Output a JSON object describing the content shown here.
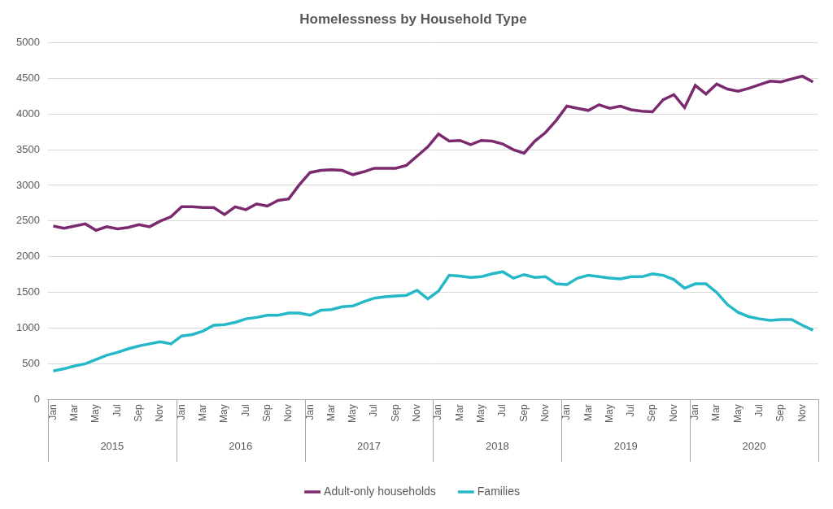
{
  "chart_data": {
    "type": "line",
    "title": "Homelessness by Household Type",
    "categories": [
      "Jan",
      null,
      "Mar",
      null,
      "May",
      null,
      "Jul",
      null,
      "Sep",
      null,
      "Nov",
      null,
      "Jan",
      null,
      "Mar",
      null,
      "May",
      null,
      "Jul",
      null,
      "Sep",
      null,
      "Nov",
      null,
      "Jan",
      null,
      "Mar",
      null,
      "May",
      null,
      "Jul",
      null,
      "Sep",
      null,
      "Nov",
      null,
      "Jan",
      null,
      "Mar",
      null,
      "May",
      null,
      "Jul",
      null,
      "Sep",
      null,
      "Nov",
      null,
      "Jan",
      null,
      "Mar",
      null,
      "May",
      null,
      "Jul",
      null,
      "Sep",
      null,
      "Nov",
      null,
      "Jan",
      null,
      "Mar",
      null,
      "May",
      null,
      "Jul",
      null,
      "Sep",
      null,
      "Nov",
      null
    ],
    "x_groups": [
      "2015",
      "2016",
      "2017",
      "2018",
      "2019",
      "2020"
    ],
    "series": [
      {
        "name": "Adult-only households",
        "color": "#7b2a6f",
        "values": [
          2430,
          2400,
          2430,
          2460,
          2370,
          2420,
          2390,
          2410,
          2450,
          2420,
          2500,
          2560,
          2700,
          2700,
          2690,
          2690,
          2590,
          2700,
          2660,
          2740,
          2710,
          2790,
          2810,
          3010,
          3180,
          3210,
          3220,
          3210,
          3150,
          3190,
          3240,
          3240,
          3240,
          3280,
          3410,
          3540,
          3720,
          3620,
          3630,
          3570,
          3630,
          3620,
          3580,
          3500,
          3450,
          3620,
          3740,
          3910,
          4110,
          4080,
          4050,
          4130,
          4080,
          4110,
          4060,
          4040,
          4030,
          4200,
          4270,
          4090,
          4400,
          4280,
          4420,
          4350,
          4320,
          4360,
          4410,
          4460,
          4450,
          4490,
          4530,
          4450
        ]
      },
      {
        "name": "Families",
        "color": "#25b8c8",
        "values": [
          400,
          430,
          470,
          500,
          560,
          620,
          660,
          710,
          750,
          780,
          810,
          780,
          890,
          910,
          960,
          1040,
          1050,
          1080,
          1130,
          1150,
          1180,
          1180,
          1210,
          1210,
          1180,
          1250,
          1260,
          1300,
          1310,
          1370,
          1420,
          1440,
          1450,
          1460,
          1530,
          1410,
          1520,
          1740,
          1730,
          1710,
          1720,
          1760,
          1790,
          1700,
          1750,
          1710,
          1720,
          1620,
          1610,
          1700,
          1740,
          1720,
          1700,
          1690,
          1720,
          1720,
          1760,
          1740,
          1680,
          1560,
          1620,
          1620,
          1500,
          1330,
          1220,
          1160,
          1130,
          1110,
          1120,
          1120,
          1040,
          970
        ]
      }
    ],
    "ylim": [
      0,
      5000
    ],
    "yticks": [
      0,
      500,
      1000,
      1500,
      2000,
      2500,
      3000,
      3500,
      4000,
      4500,
      5000
    ],
    "grid": true,
    "legend": "bottom"
  }
}
